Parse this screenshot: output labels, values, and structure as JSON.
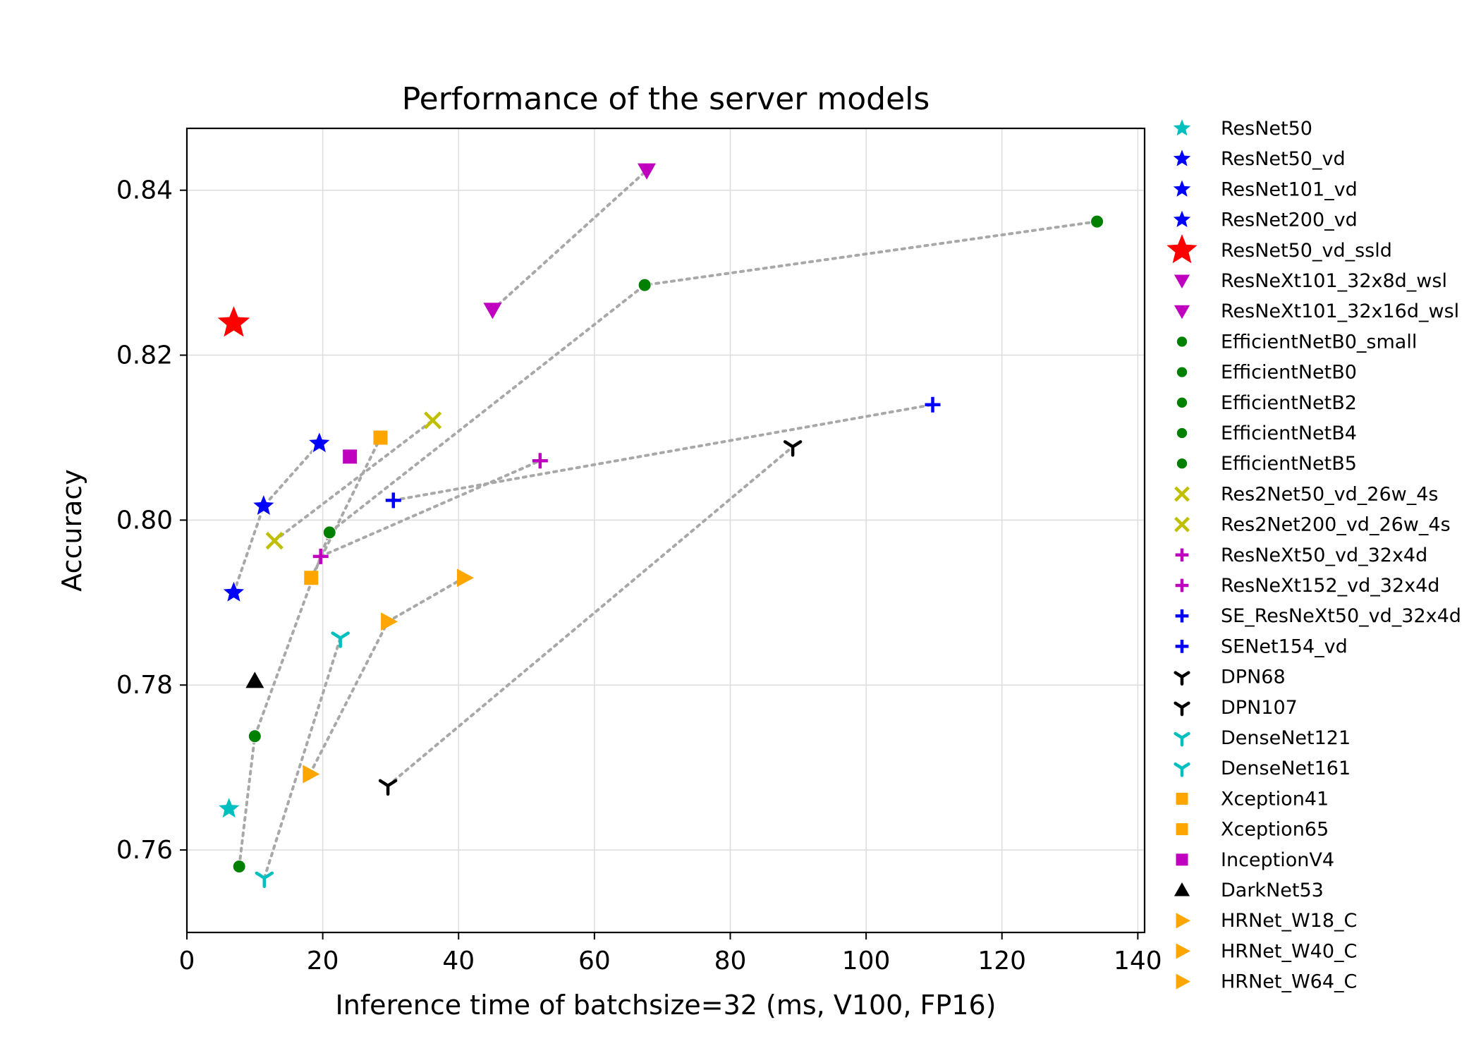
{
  "chart_data": {
    "type": "scatter",
    "title": "Performance of the server models",
    "xlabel": "Inference time of batchsize=32 (ms, V100, FP16)",
    "ylabel": "Accuracy",
    "xlim": [
      0,
      141
    ],
    "ylim": [
      0.75,
      0.8475
    ],
    "xticks": [
      0,
      20,
      40,
      60,
      80,
      100,
      120,
      140
    ],
    "yticks": [
      0.76,
      0.78,
      0.8,
      0.82,
      0.84
    ],
    "ytick_labels": [
      "0.76",
      "0.78",
      "0.80",
      "0.82",
      "0.84"
    ],
    "grid": true,
    "legend_position": "outside-right",
    "series": [
      {
        "name": "ResNet50",
        "marker": "star",
        "color": "#00bfbf",
        "points": [
          [
            6.2,
            0.765
          ]
        ]
      },
      {
        "name": "ResNet50_vd",
        "marker": "star",
        "color": "#0000ff",
        "points": [
          [
            6.9,
            0.7912
          ]
        ]
      },
      {
        "name": "ResNet101_vd",
        "marker": "star",
        "color": "#0000ff",
        "points": [
          [
            11.3,
            0.8017
          ]
        ]
      },
      {
        "name": "ResNet200_vd",
        "marker": "star",
        "color": "#0000ff",
        "points": [
          [
            19.5,
            0.8093
          ]
        ]
      },
      {
        "name": "ResNet50_vd_ssld",
        "marker": "star-large",
        "color": "#ff0000",
        "points": [
          [
            6.9,
            0.8239
          ]
        ]
      },
      {
        "name": "ResNeXt101_32x8d_wsl",
        "marker": "triangle-down",
        "color": "#bf00bf",
        "points": [
          [
            45.0,
            0.8255
          ]
        ]
      },
      {
        "name": "ResNeXt101_32x16d_wsl",
        "marker": "triangle-down",
        "color": "#bf00bf",
        "points": [
          [
            67.7,
            0.8424
          ]
        ]
      },
      {
        "name": "EfficientNetB0_small",
        "marker": "circle",
        "color": "#008000",
        "points": [
          [
            7.7,
            0.758
          ]
        ]
      },
      {
        "name": "EfficientNetB0",
        "marker": "circle",
        "color": "#008000",
        "points": [
          [
            10.0,
            0.7738
          ]
        ]
      },
      {
        "name": "EfficientNetB2",
        "marker": "circle",
        "color": "#008000",
        "points": [
          [
            21.0,
            0.7985
          ]
        ]
      },
      {
        "name": "EfficientNetB4",
        "marker": "circle",
        "color": "#008000",
        "points": [
          [
            67.4,
            0.8285
          ]
        ]
      },
      {
        "name": "EfficientNetB5",
        "marker": "circle",
        "color": "#008000",
        "points": [
          [
            134.0,
            0.8362
          ]
        ]
      },
      {
        "name": "Res2Net50_vd_26w_4s",
        "marker": "x",
        "color": "#bfbf00",
        "points": [
          [
            12.9,
            0.7975
          ]
        ]
      },
      {
        "name": "Res2Net200_vd_26w_4s",
        "marker": "x",
        "color": "#bfbf00",
        "points": [
          [
            36.2,
            0.8121
          ]
        ]
      },
      {
        "name": "ResNeXt50_vd_32x4d",
        "marker": "plus",
        "color": "#bf00bf",
        "points": [
          [
            19.7,
            0.7956
          ]
        ]
      },
      {
        "name": "ResNeXt152_vd_32x4d",
        "marker": "plus",
        "color": "#bf00bf",
        "points": [
          [
            52.0,
            0.8072
          ]
        ]
      },
      {
        "name": "SE_ResNeXt50_vd_32x4d",
        "marker": "plus",
        "color": "#0000ff",
        "points": [
          [
            30.4,
            0.8024
          ]
        ]
      },
      {
        "name": "SENet154_vd",
        "marker": "plus",
        "color": "#0000ff",
        "points": [
          [
            109.8,
            0.814
          ]
        ]
      },
      {
        "name": "DPN68",
        "marker": "tri-down",
        "color": "#000000",
        "points": [
          [
            29.6,
            0.7678
          ]
        ]
      },
      {
        "name": "DPN107",
        "marker": "tri-down",
        "color": "#000000",
        "points": [
          [
            89.2,
            0.8089
          ]
        ]
      },
      {
        "name": "DenseNet121",
        "marker": "tri-down",
        "color": "#00bfbf",
        "points": [
          [
            11.4,
            0.7566
          ]
        ]
      },
      {
        "name": "DenseNet161",
        "marker": "tri-down",
        "color": "#00bfbf",
        "points": [
          [
            22.6,
            0.7857
          ]
        ]
      },
      {
        "name": "Xception41",
        "marker": "square",
        "color": "#ffa500",
        "points": [
          [
            18.3,
            0.793
          ]
        ]
      },
      {
        "name": "Xception65",
        "marker": "square",
        "color": "#ffa500",
        "points": [
          [
            28.5,
            0.81
          ]
        ]
      },
      {
        "name": "InceptionV4",
        "marker": "square",
        "color": "#bf00bf",
        "points": [
          [
            24.0,
            0.8077
          ]
        ]
      },
      {
        "name": "DarkNet53",
        "marker": "triangle-up",
        "color": "#000000",
        "points": [
          [
            10.0,
            0.7805
          ]
        ]
      },
      {
        "name": "HRNet_W18_C",
        "marker": "triangle-right",
        "color": "#ffa500",
        "points": [
          [
            18.1,
            0.7692
          ]
        ]
      },
      {
        "name": "HRNet_W40_C",
        "marker": "triangle-right",
        "color": "#ffa500",
        "points": [
          [
            29.6,
            0.7877
          ]
        ]
      },
      {
        "name": "HRNet_W64_C",
        "marker": "triangle-right",
        "color": "#ffa500",
        "points": [
          [
            40.8,
            0.793
          ]
        ]
      }
    ],
    "connections": [
      [
        "ResNet50_vd",
        "ResNet101_vd",
        "ResNet200_vd"
      ],
      [
        "ResNeXt101_32x8d_wsl",
        "ResNeXt101_32x16d_wsl"
      ],
      [
        "EfficientNetB0_small",
        "EfficientNetB0",
        "EfficientNetB2",
        "EfficientNetB4",
        "EfficientNetB5"
      ],
      [
        "Res2Net50_vd_26w_4s",
        "Res2Net200_vd_26w_4s"
      ],
      [
        "ResNeXt50_vd_32x4d",
        "ResNeXt152_vd_32x4d"
      ],
      [
        "SE_ResNeXt50_vd_32x4d",
        "SENet154_vd"
      ],
      [
        "DPN68",
        "DPN107"
      ],
      [
        "DenseNet121",
        "DenseNet161"
      ],
      [
        "Xception41",
        "Xception65"
      ],
      [
        "HRNet_W18_C",
        "HRNet_W40_C",
        "HRNet_W64_C"
      ]
    ]
  }
}
